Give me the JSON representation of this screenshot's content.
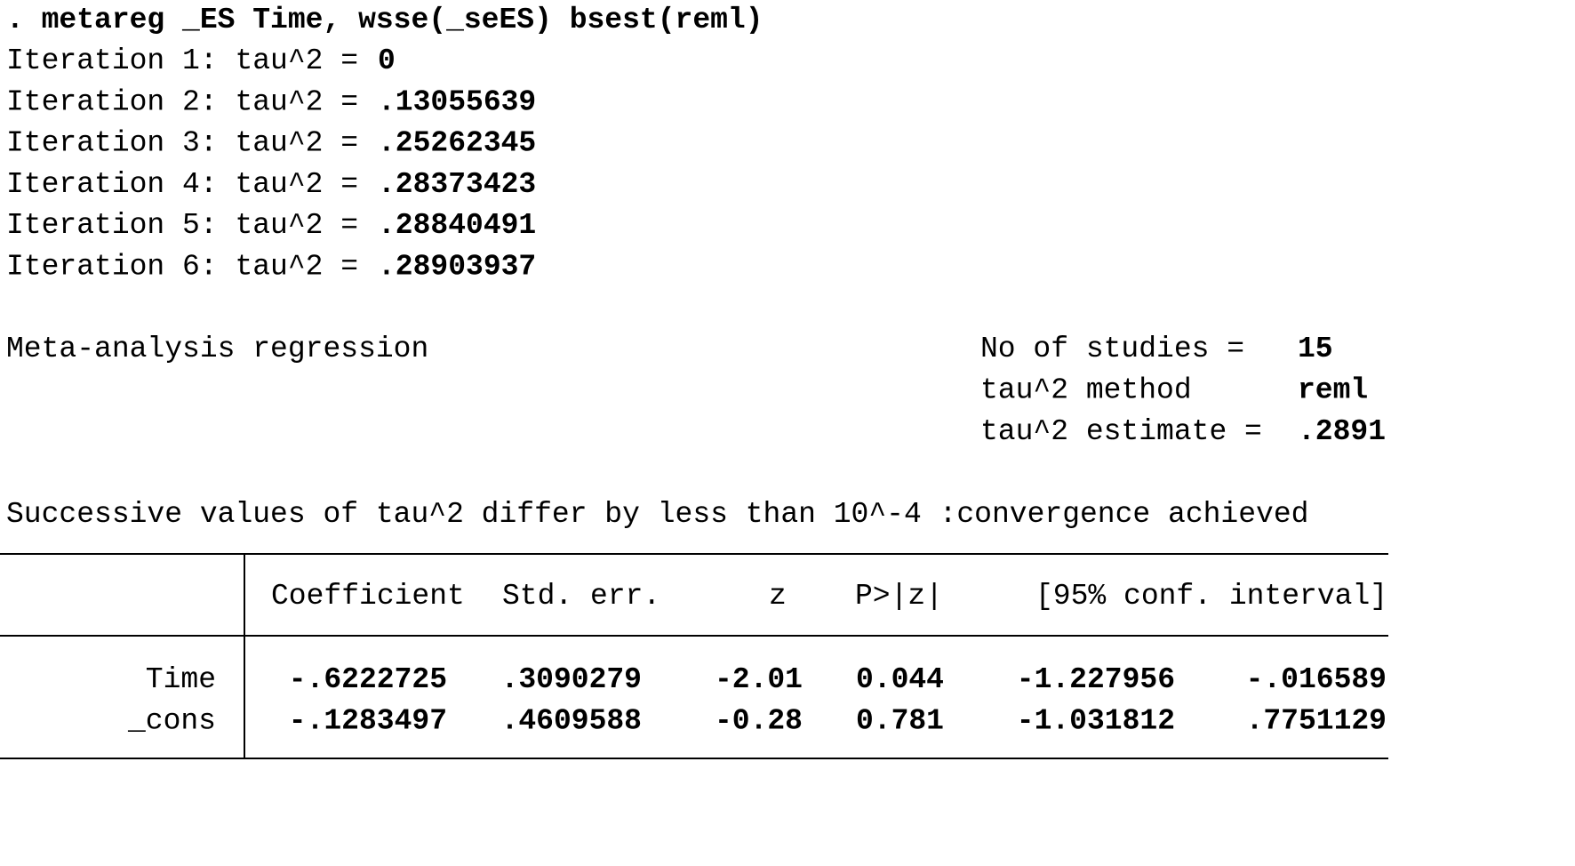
{
  "command": ". metareg _ES Time, wsse(_seES) bsest(reml)",
  "iterations": [
    {
      "label": "Iteration 1: tau^2 =",
      "value": "0"
    },
    {
      "label": "Iteration 2: tau^2 =",
      "value": ".13055639"
    },
    {
      "label": "Iteration 3: tau^2 =",
      "value": ".25262345"
    },
    {
      "label": "Iteration 4: tau^2 =",
      "value": ".28373423"
    },
    {
      "label": "Iteration 5: tau^2 =",
      "value": ".28840491"
    },
    {
      "label": "Iteration 6: tau^2 =",
      "value": ".28903937"
    }
  ],
  "title": "Meta-analysis regression",
  "stats": [
    {
      "label": "No of studies =",
      "value": "15"
    },
    {
      "label": "tau^2 method",
      "value": "reml"
    },
    {
      "label": "tau^2 estimate =",
      "value": ".2891"
    }
  ],
  "convergence": "Successive values of tau^2 differ by less than 10^-4 :convergence achieved",
  "table": {
    "header": [
      "Coefficient",
      "Std. err.",
      "z",
      "P>|z|",
      "[95% conf. interval]"
    ],
    "rows": [
      [
        "Time",
        "-.6222725",
        ".3090279",
        "-2.01",
        "0.044",
        "-1.227956",
        "-.016589"
      ],
      [
        "_cons",
        "-.1283497",
        ".4609588",
        "-0.28",
        "0.781",
        "-1.031812",
        ".7751129"
      ]
    ]
  }
}
